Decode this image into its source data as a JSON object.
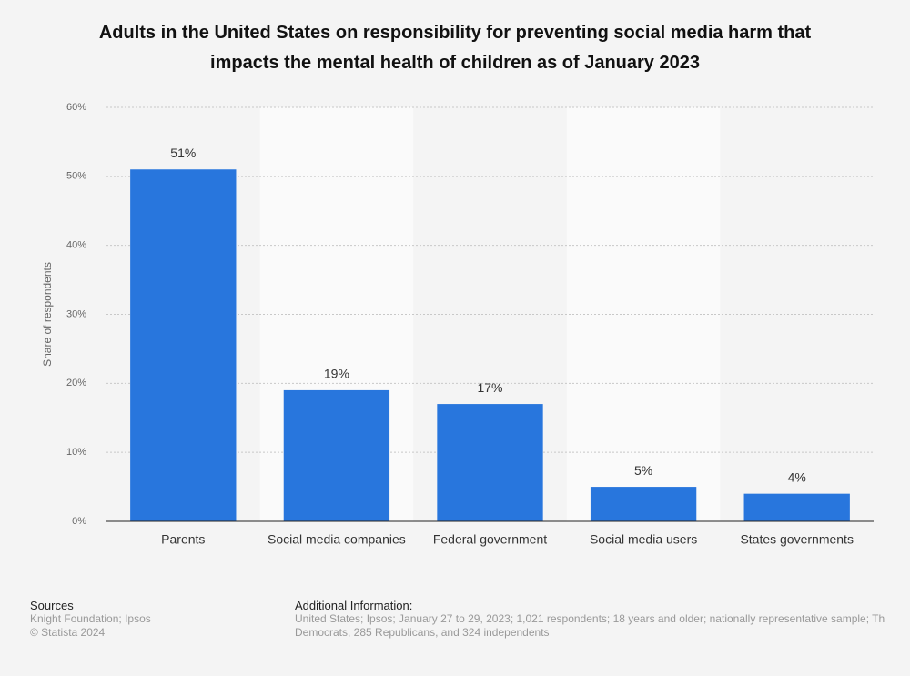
{
  "chart_data": {
    "type": "bar",
    "title": "Adults in the United States on responsibility for preventing social media harm that impacts the mental health of children as of January 2023",
    "y_label": "Share of respondents",
    "categories": [
      "Parents",
      "Social media companies",
      "Federal government",
      "Social media users",
      "States governments"
    ],
    "values": [
      51,
      19,
      17,
      5,
      4
    ],
    "value_labels": [
      "51%",
      "19%",
      "17%",
      "5%",
      "4%"
    ],
    "color": "#2876dd",
    "ylim": [
      0,
      60
    ],
    "yticks": [
      {
        "value": 0,
        "label": "0%"
      },
      {
        "value": 10,
        "label": "10%"
      },
      {
        "value": 20,
        "label": "20%"
      },
      {
        "value": 30,
        "label": "30%"
      },
      {
        "value": 40,
        "label": "40%"
      },
      {
        "value": 50,
        "label": "50%"
      },
      {
        "value": 60,
        "label": "60%"
      }
    ],
    "grid": true
  },
  "footer": {
    "sources_title": "Sources",
    "sources": [
      "Knight Foundation; Ipsos",
      "© Statista 2024"
    ],
    "info_title": "Additional Information:",
    "info": [
      "United States; Ipsos; January 27 to 29, 2023; 1,021 respondents; 18 years and older; nationally representative sample; Th",
      "Democrats, 285 Republicans, and 324 independents"
    ]
  }
}
